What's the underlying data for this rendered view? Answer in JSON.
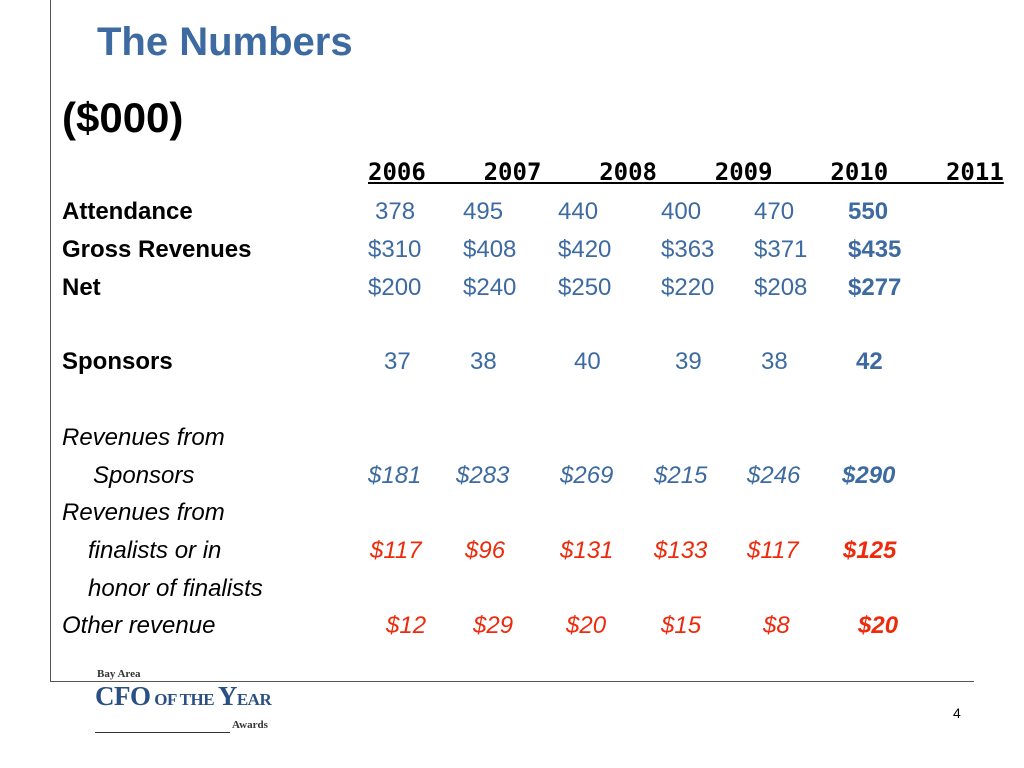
{
  "slide": {
    "title": "The Numbers",
    "subtitle": "($000)",
    "years_header": "2006    2007    2008    2009    2010    2011",
    "page_number": "4"
  },
  "rows": {
    "attendance": {
      "label": "Attendance",
      "values": [
        "378",
        "495",
        "440",
        "400",
        "470",
        "550"
      ]
    },
    "gross_revenues": {
      "label": "Gross Revenues",
      "values": [
        "$310",
        "$408",
        "$420",
        "$363",
        "$371",
        "$435"
      ]
    },
    "net": {
      "label": "Net",
      "values": [
        "$200",
        "$240",
        "$250",
        "$220",
        "$208",
        "$277"
      ]
    },
    "sponsors": {
      "label": "Sponsors",
      "values": [
        "37",
        "38",
        "40",
        "39",
        "38",
        "42"
      ]
    },
    "rev_sponsors": {
      "label_line1": "Revenues from",
      "label_line2": "Sponsors",
      "values": [
        "$181",
        "$283",
        "$269",
        "$215",
        "$246",
        "$290"
      ]
    },
    "rev_finalists": {
      "label_line1": "Revenues from",
      "label_line2": "finalists or in",
      "label_line3": "honor of finalists",
      "values": [
        "$117",
        "$96",
        "$131",
        "$133",
        "$117",
        "$125"
      ]
    },
    "other_revenue": {
      "label": "Other revenue",
      "values": [
        "$12",
        "$29",
        "$20",
        "$15",
        "$8",
        "$20"
      ]
    }
  },
  "logo": {
    "line1": "Bay Area",
    "cfo": "CFO",
    "of_the": " OF THE ",
    "y": "Y",
    "ear": "EAR",
    "awards": "Awards"
  },
  "colors": {
    "title_blue": "#3d6aa0",
    "value_blue": "#3d6aa0",
    "value_red": "#ee2a0c"
  }
}
